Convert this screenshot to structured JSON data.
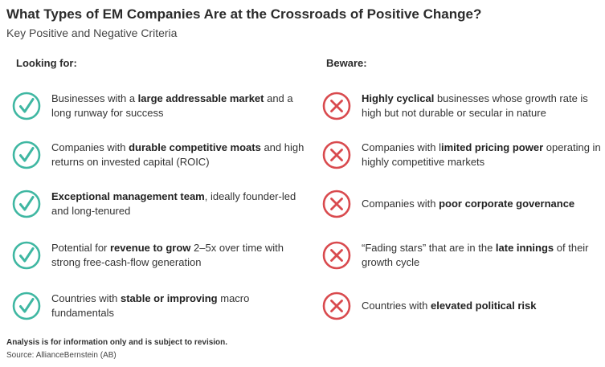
{
  "header": {
    "title": "What Types of EM Companies Are at the Crossroads of Positive Change?",
    "subtitle": "Key Positive and Negative Criteria"
  },
  "colors": {
    "positive": "#3fb7a2",
    "negative": "#d94a4e"
  },
  "looking_for": {
    "heading": "Looking for:",
    "icon": "check-circle-icon",
    "items": [
      {
        "segments": [
          {
            "text": "Businesses with a "
          },
          {
            "text": "large addressable market",
            "bold": true
          },
          {
            "text": " and a long runway for success"
          }
        ]
      },
      {
        "segments": [
          {
            "text": "Companies with "
          },
          {
            "text": "durable competitive moats",
            "bold": true
          },
          {
            "text": " and high returns on invested capital (ROIC)"
          }
        ]
      },
      {
        "segments": [
          {
            "text": "Exceptional management team",
            "bold": true
          },
          {
            "text": ", ideally founder-led and long-tenured"
          }
        ]
      },
      {
        "segments": [
          {
            "text": "Potential for "
          },
          {
            "text": "revenue to grow",
            "bold": true
          },
          {
            "text": " 2–5x over time with strong free-cash-flow generation"
          }
        ]
      },
      {
        "segments": [
          {
            "text": "Countries with "
          },
          {
            "text": "stable or improving",
            "bold": true
          },
          {
            "text": " macro fundamentals"
          }
        ]
      }
    ]
  },
  "beware": {
    "heading": "Beware:",
    "icon": "x-circle-icon",
    "items": [
      {
        "segments": [
          {
            "text": "Highly cyclical",
            "bold": true
          },
          {
            "text": " businesses whose growth rate is high but not durable or secular in nature"
          }
        ]
      },
      {
        "segments": [
          {
            "text": "Companies with l"
          },
          {
            "text": "imited pricing power",
            "bold": true
          },
          {
            "text": " operating in highly competitive markets"
          }
        ]
      },
      {
        "segments": [
          {
            "text": "Companies with "
          },
          {
            "text": "poor corporate governance",
            "bold": true
          }
        ]
      },
      {
        "segments": [
          {
            "text": "“Fading stars” that are in the "
          },
          {
            "text": "late innings",
            "bold": true
          },
          {
            "text": " of their growth cycle"
          }
        ]
      },
      {
        "segments": [
          {
            "text": "Countries with "
          },
          {
            "text": "elevated political risk",
            "bold": true
          }
        ]
      }
    ]
  },
  "footer": {
    "note": "Analysis is for information only and is subject to revision.",
    "source": "Source: AllianceBernstein (AB)"
  }
}
